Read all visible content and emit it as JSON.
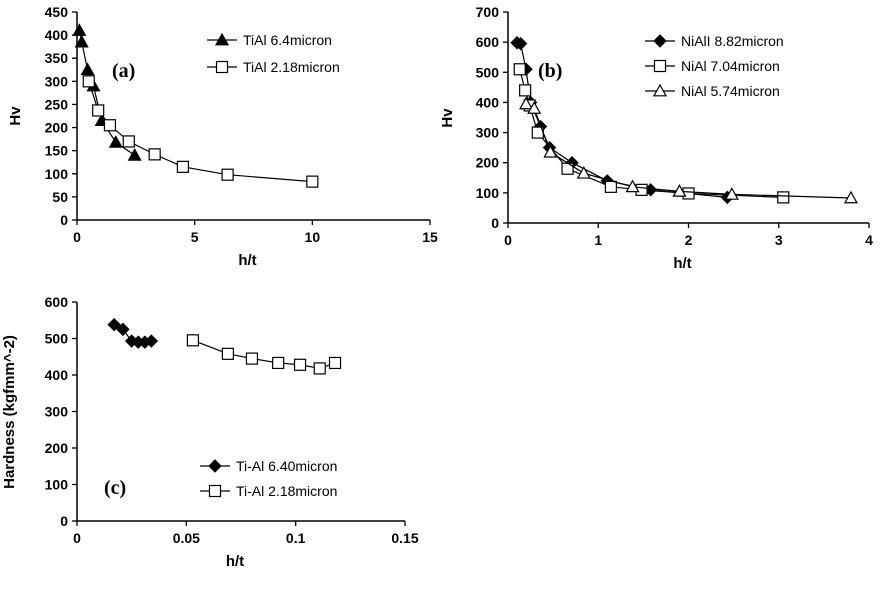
{
  "chart_data": [
    {
      "type": "scatter",
      "panel_label": "(a)",
      "title": "",
      "xlabel": "h/t",
      "ylabel": "Hv",
      "xlim": [
        0,
        15
      ],
      "ylim": [
        0,
        450
      ],
      "xticks": [
        0,
        5,
        10,
        15
      ],
      "yticks": [
        0,
        50,
        100,
        150,
        200,
        250,
        300,
        350,
        400,
        450
      ],
      "xtick_labels": [
        "0",
        "5",
        "10",
        "15"
      ],
      "ytick_labels": [
        "0",
        "50",
        "100",
        "150",
        "200",
        "250",
        "300",
        "350",
        "400",
        "450"
      ],
      "grid": false,
      "legend_position": "top-right",
      "series": [
        {
          "name": "TiAl 6.4micron",
          "marker": "triangle-filled",
          "x": [
            0.1,
            0.2,
            0.45,
            0.7,
            1.05,
            1.65,
            2.45
          ],
          "y": [
            410,
            385,
            325,
            290,
            215,
            168,
            140
          ]
        },
        {
          "name": "TiAl 2.18micron",
          "marker": "square-open",
          "x": [
            0.5,
            0.9,
            1.4,
            2.2,
            3.3,
            4.5,
            6.4,
            10.0
          ],
          "y": [
            300,
            237,
            205,
            170,
            142,
            115,
            98,
            83
          ]
        }
      ]
    },
    {
      "type": "scatter",
      "panel_label": "(b)",
      "title": "",
      "xlabel": "h/t",
      "ylabel": "Hv",
      "xlim": [
        0,
        4
      ],
      "ylim": [
        0,
        700
      ],
      "xticks": [
        0,
        1,
        2,
        3,
        4
      ],
      "yticks": [
        0,
        100,
        200,
        300,
        400,
        500,
        600,
        700
      ],
      "xtick_labels": [
        "0",
        "1",
        "2",
        "3",
        "4"
      ],
      "ytick_labels": [
        "0",
        "100",
        "200",
        "300",
        "400",
        "500",
        "600",
        "700"
      ],
      "grid": false,
      "legend_position": "top-right",
      "series": [
        {
          "name": "NiAlI 8.82micron",
          "marker": "diamond-filled",
          "x": [
            0.1,
            0.14,
            0.2,
            0.25,
            0.36,
            0.46,
            0.71,
            1.1,
            1.58,
            2.43
          ],
          "y": [
            598,
            595,
            510,
            400,
            320,
            250,
            200,
            140,
            110,
            85
          ]
        },
        {
          "name": "NiAl 7.04micron",
          "marker": "square-open",
          "x": [
            0.13,
            0.19,
            0.24,
            0.33,
            0.66,
            1.14,
            1.48,
            2.0,
            3.05
          ],
          "y": [
            510,
            440,
            390,
            300,
            180,
            120,
            110,
            98,
            85
          ]
        },
        {
          "name": "NiAl 5.74micron",
          "marker": "triangle-open",
          "x": [
            0.2,
            0.29,
            0.47,
            0.84,
            1.38,
            1.9,
            2.48,
            3.8
          ],
          "y": [
            395,
            380,
            235,
            165,
            120,
            105,
            95,
            83
          ]
        }
      ]
    },
    {
      "type": "scatter",
      "panel_label": "(c)",
      "title": "",
      "xlabel": "h/t",
      "ylabel": "Hardness (kgfmm^-2)",
      "xlim": [
        0,
        0.15
      ],
      "ylim": [
        0,
        600
      ],
      "xticks": [
        0,
        0.05,
        0.1,
        0.15
      ],
      "yticks": [
        0,
        100,
        200,
        300,
        400,
        500,
        600
      ],
      "xtick_labels": [
        "0",
        "0.05",
        "0.1",
        "0.15"
      ],
      "ytick_labels": [
        "0",
        "100",
        "200",
        "300",
        "400",
        "500",
        "600"
      ],
      "grid": false,
      "legend_position": "bottom-center",
      "series": [
        {
          "name": "Ti-Al 6.40micron",
          "marker": "diamond-filled",
          "x": [
            0.017,
            0.021,
            0.025,
            0.028,
            0.031,
            0.034
          ],
          "y": [
            538,
            525,
            493,
            490,
            490,
            493
          ]
        },
        {
          "name": "Ti-Al 2.18micron",
          "marker": "square-open",
          "x": [
            0.053,
            0.069,
            0.08,
            0.092,
            0.102,
            0.111,
            0.118
          ],
          "y": [
            495,
            458,
            445,
            433,
            428,
            418,
            433
          ]
        }
      ]
    }
  ]
}
